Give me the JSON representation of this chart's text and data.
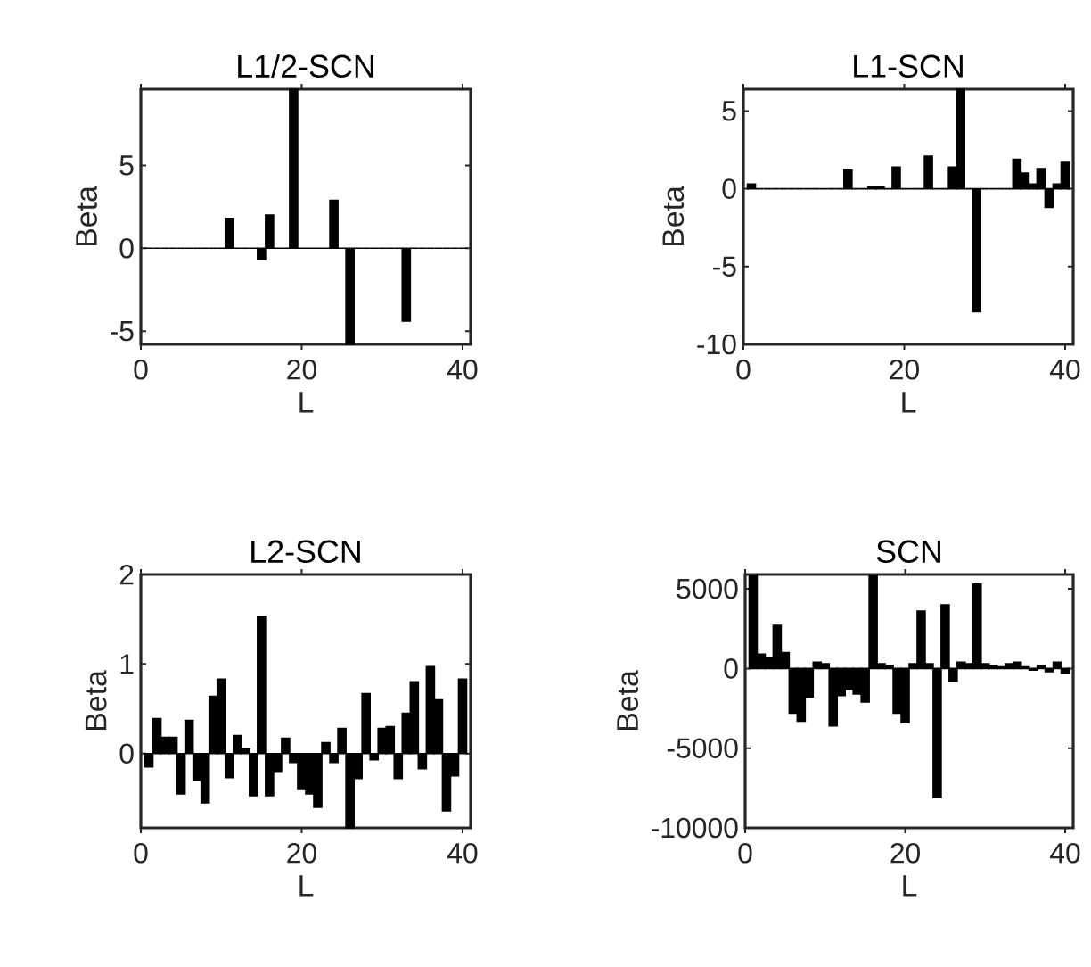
{
  "chart_data": [
    {
      "type": "bar",
      "title": "L1/2-SCN",
      "xlabel": "L",
      "ylabel": "Beta",
      "color": "#000000",
      "xlim": [
        0,
        41
      ],
      "ylim": [
        -5.8,
        9.6
      ],
      "xticks": [
        0,
        20,
        40
      ],
      "yticks": [
        -5,
        0,
        5
      ],
      "x": [
        1,
        2,
        3,
        4,
        5,
        6,
        7,
        8,
        9,
        10,
        11,
        12,
        13,
        14,
        15,
        16,
        17,
        18,
        19,
        20,
        21,
        22,
        23,
        24,
        25,
        26,
        27,
        28,
        29,
        30,
        31,
        32,
        33,
        34,
        35,
        36,
        37,
        38,
        39,
        40
      ],
      "values": [
        0,
        0,
        0,
        0,
        0,
        0,
        0,
        0,
        0,
        0,
        1.8,
        0,
        0,
        0,
        -0.7,
        2.0,
        0,
        0,
        9.6,
        0,
        0,
        0,
        0,
        2.9,
        0,
        -5.8,
        0,
        0,
        0,
        0,
        0,
        0,
        -4.4,
        0,
        0,
        0,
        0,
        0,
        0,
        0
      ]
    },
    {
      "type": "bar",
      "title": "L1-SCN",
      "xlabel": "L",
      "ylabel": "Beta",
      "color": "#000000",
      "xlim": [
        0,
        41
      ],
      "ylim": [
        -10,
        6.4
      ],
      "xticks": [
        0,
        20,
        40
      ],
      "yticks": [
        -10,
        -5,
        0,
        5
      ],
      "x": [
        1,
        2,
        3,
        4,
        5,
        6,
        7,
        8,
        9,
        10,
        11,
        12,
        13,
        14,
        15,
        16,
        17,
        18,
        19,
        20,
        21,
        22,
        23,
        24,
        25,
        26,
        27,
        28,
        29,
        30,
        31,
        32,
        33,
        34,
        35,
        36,
        37,
        38,
        39,
        40
      ],
      "values": [
        0.3,
        0,
        0,
        0,
        0,
        0,
        0,
        0,
        0,
        0,
        0,
        0,
        1.2,
        0,
        0,
        0.1,
        0.1,
        0,
        1.4,
        0,
        0,
        0,
        2.1,
        0,
        0,
        1.4,
        6.4,
        0,
        -7.9,
        0,
        0,
        0,
        0,
        1.9,
        1.0,
        0.3,
        1.3,
        -1.2,
        0.3,
        1.7
      ]
    },
    {
      "type": "bar",
      "title": "L2-SCN",
      "xlabel": "L",
      "ylabel": "Beta",
      "color": "#000000",
      "xlim": [
        0,
        41
      ],
      "ylim": [
        -0.83,
        2
      ],
      "xticks": [
        0,
        20,
        40
      ],
      "yticks": [
        0,
        1,
        2
      ],
      "x": [
        1,
        2,
        3,
        4,
        5,
        6,
        7,
        8,
        9,
        10,
        11,
        12,
        13,
        14,
        15,
        16,
        17,
        18,
        19,
        20,
        21,
        22,
        23,
        24,
        25,
        26,
        27,
        28,
        29,
        30,
        31,
        32,
        33,
        34,
        35,
        36,
        37,
        38,
        39,
        40
      ],
      "values": [
        -0.15,
        0.39,
        0.18,
        0.18,
        -0.45,
        0.37,
        -0.3,
        -0.55,
        0.64,
        0.83,
        -0.27,
        0.2,
        0.05,
        -0.47,
        1.53,
        -0.47,
        -0.2,
        0.17,
        -0.1,
        -0.4,
        -0.45,
        -0.6,
        0.12,
        -0.1,
        0.28,
        -0.83,
        -0.28,
        0.67,
        -0.07,
        0.28,
        0.3,
        -0.28,
        0.45,
        0.8,
        -0.17,
        0.97,
        0.6,
        -0.64,
        -0.25,
        0.83
      ]
    },
    {
      "type": "bar",
      "title": "SCN",
      "xlabel": "L",
      "ylabel": "Beta",
      "color": "#000000",
      "xlim": [
        0,
        41
      ],
      "ylim": [
        -10000,
        5900
      ],
      "xticks": [
        0,
        20,
        40
      ],
      "yticks": [
        -10000,
        -5000,
        0,
        5000
      ],
      "x": [
        1,
        2,
        3,
        4,
        5,
        6,
        7,
        8,
        9,
        10,
        11,
        12,
        13,
        14,
        15,
        16,
        17,
        18,
        19,
        20,
        21,
        22,
        23,
        24,
        25,
        26,
        27,
        28,
        29,
        30,
        31,
        32,
        33,
        34,
        35,
        36,
        37,
        38,
        39,
        40
      ],
      "values": [
        5800,
        900,
        700,
        2700,
        1000,
        -2800,
        -3300,
        -1800,
        400,
        300,
        -3600,
        -1700,
        -1300,
        -1600,
        -2100,
        5800,
        300,
        200,
        -2800,
        -3400,
        300,
        3600,
        300,
        -8100,
        4000,
        -800,
        400,
        300,
        5300,
        300,
        200,
        100,
        300,
        400,
        100,
        -100,
        200,
        -200,
        400,
        -300
      ]
    }
  ]
}
